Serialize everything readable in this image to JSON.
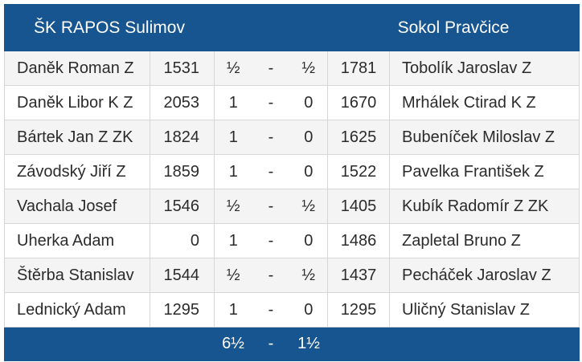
{
  "header": {
    "home_team": "ŠK RAPOS Sulimov",
    "away_team": "Sokol Pravčice"
  },
  "boards": [
    {
      "home_player": "Daněk Roman Z",
      "home_rating": "1531",
      "home_score": "½",
      "separator": "-",
      "away_score": "½",
      "away_rating": "1781",
      "away_player": "Tobolík Jaroslav Z"
    },
    {
      "home_player": "Daněk Libor K Z",
      "home_rating": "2053",
      "home_score": "1",
      "separator": "-",
      "away_score": "0",
      "away_rating": "1670",
      "away_player": "Mrhálek Ctirad K Z"
    },
    {
      "home_player": "Bártek Jan Z ZK",
      "home_rating": "1824",
      "home_score": "1",
      "separator": "-",
      "away_score": "0",
      "away_rating": "1625",
      "away_player": "Bubeníček Miloslav Z"
    },
    {
      "home_player": "Závodský Jiří Z",
      "home_rating": "1859",
      "home_score": "1",
      "separator": "-",
      "away_score": "0",
      "away_rating": "1522",
      "away_player": "Pavelka František Z"
    },
    {
      "home_player": "Vachala Josef",
      "home_rating": "1546",
      "home_score": "½",
      "separator": "-",
      "away_score": "½",
      "away_rating": "1405",
      "away_player": "Kubík Radomír Z ZK"
    },
    {
      "home_player": "Uherka Adam",
      "home_rating": "0",
      "home_score": "1",
      "separator": "-",
      "away_score": "0",
      "away_rating": "1486",
      "away_player": "Zapletal Bruno Z"
    },
    {
      "home_player": "Štěrba Stanislav",
      "home_rating": "1544",
      "home_score": "½",
      "separator": "-",
      "away_score": "½",
      "away_rating": "1437",
      "away_player": "Pecháček Jaroslav Z"
    },
    {
      "home_player": "Lednický Adam",
      "home_rating": "1295",
      "home_score": "1",
      "separator": "-",
      "away_score": "0",
      "away_rating": "1295",
      "away_player": "Uličný Stanislav Z"
    }
  ],
  "total": {
    "home_total": "6½",
    "separator": "-",
    "away_total": "1½"
  },
  "colors": {
    "header_bg": "#175591",
    "header_text": "#ffffff",
    "row_alt_bg": "#f4f4f4",
    "grid_line": "#d6d6d6"
  }
}
